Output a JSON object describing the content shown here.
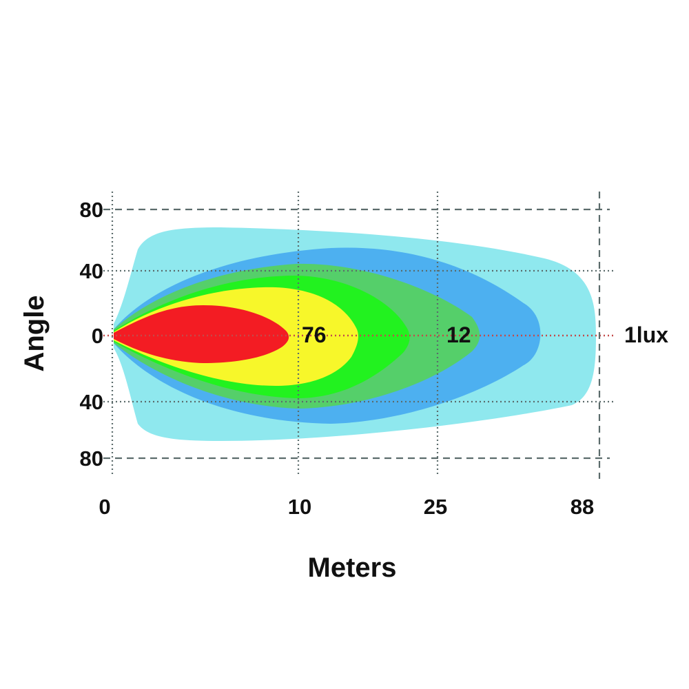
{
  "chart_data": {
    "type": "area",
    "title": "",
    "xlabel": "Meters",
    "ylabel": "Angle",
    "x_ticks": [
      "0",
      "10",
      "25",
      "88"
    ],
    "y_ticks": [
      "80",
      "40",
      "0",
      "40",
      "80"
    ],
    "grid": true,
    "series": [
      {
        "name": "",
        "color": "#8fe8ee",
        "reach": 88
      },
      {
        "name": "",
        "color": "#4db0f0",
        "reach": 70
      },
      {
        "name": "",
        "color": "#55cf6a",
        "reach": 31
      },
      {
        "name": "",
        "color": "#22f21f",
        "reach": 19
      },
      {
        "name": "",
        "color": "#f7f72a",
        "reach": 13
      },
      {
        "name": "",
        "color": "#f31c23",
        "reach": 9.5
      }
    ],
    "annotations": [
      {
        "text": "76",
        "x": 10,
        "y": 0
      },
      {
        "text": "12",
        "x": 25,
        "y": 0
      },
      {
        "text": "1lux",
        "x": 88,
        "y": 0
      }
    ]
  }
}
